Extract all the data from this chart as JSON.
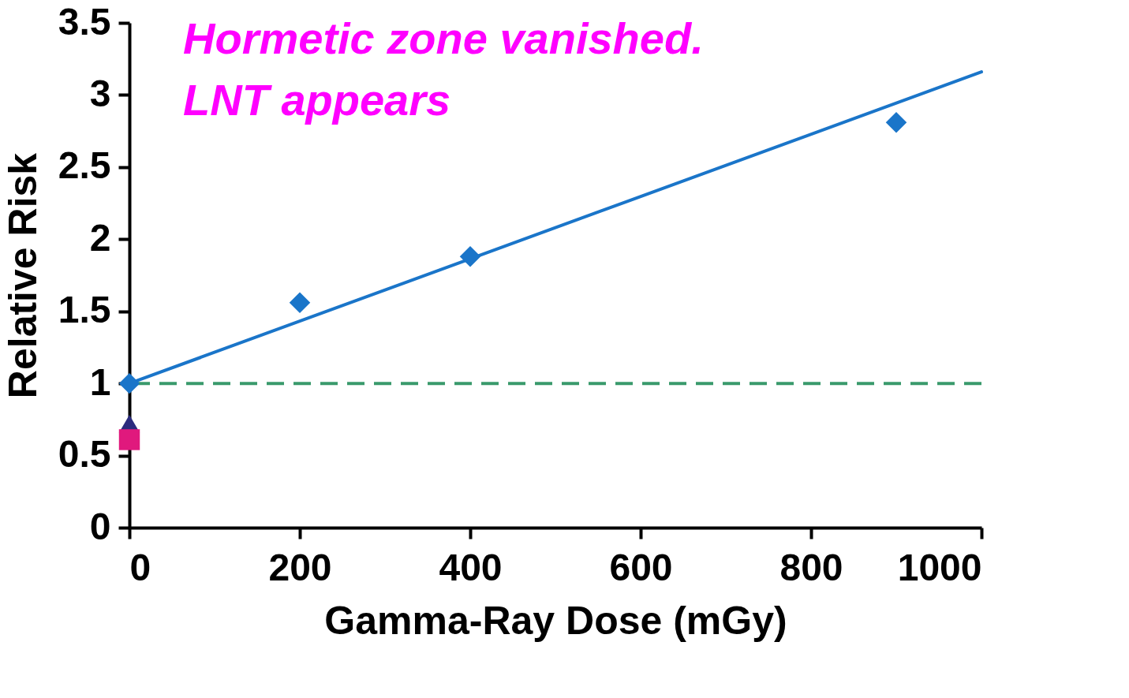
{
  "chart_data": {
    "type": "scatter",
    "xlabel": "Gamma-Ray Dose (mGy)",
    "ylabel": "Relative Risk",
    "annotations": [
      "Hormetic zone vanished.",
      "LNT appears"
    ],
    "xlim": [
      0,
      1000
    ],
    "xticks": [
      0,
      200,
      400,
      600,
      800,
      1000
    ],
    "ylim": [
      0,
      3.5
    ],
    "yticks": [
      0,
      0.5,
      1,
      1.5,
      2,
      2.5,
      3,
      3.5
    ],
    "grid": false,
    "series": [
      {
        "type": "line",
        "color": "#1a75c9",
        "x": [
          0,
          1000
        ],
        "values": [
          1.0,
          3.16
        ],
        "marker": "none",
        "line_style": "solid"
      },
      {
        "color": "#1a75c9",
        "marker": "diamond",
        "x": [
          0,
          200,
          400,
          900
        ],
        "values": [
          1.0,
          1.56,
          1.88,
          2.81
        ]
      },
      {
        "color": "#2b2b7e",
        "marker": "triangle",
        "x": [
          0
        ],
        "values": [
          0.72
        ]
      },
      {
        "color": "#e0197d",
        "marker": "square",
        "x": [
          0
        ],
        "values": [
          0.61
        ]
      }
    ],
    "ref_lines": [
      {
        "axis": "y",
        "value": 1,
        "color": "#3a9a6c",
        "line_style": "dashed"
      }
    ]
  }
}
